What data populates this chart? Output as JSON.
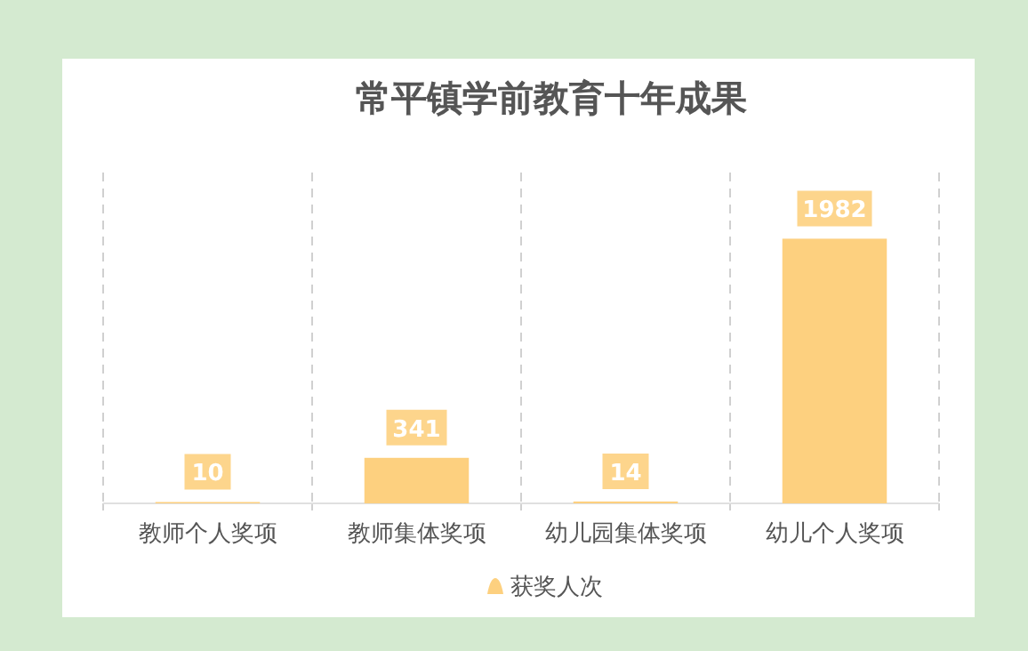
{
  "chart_data": {
    "type": "bar",
    "title": "常平镇学前教育十年成果",
    "categories": [
      "教师个人奖项",
      "教师集体奖项",
      "幼儿园集体奖项",
      "幼儿个人奖项"
    ],
    "series": [
      {
        "name": "获奖人次",
        "color": "#fdd07f",
        "values": [
          10,
          341,
          14,
          1982
        ]
      }
    ],
    "data_labels": true,
    "legend": "bottom",
    "grid": "x"
  }
}
